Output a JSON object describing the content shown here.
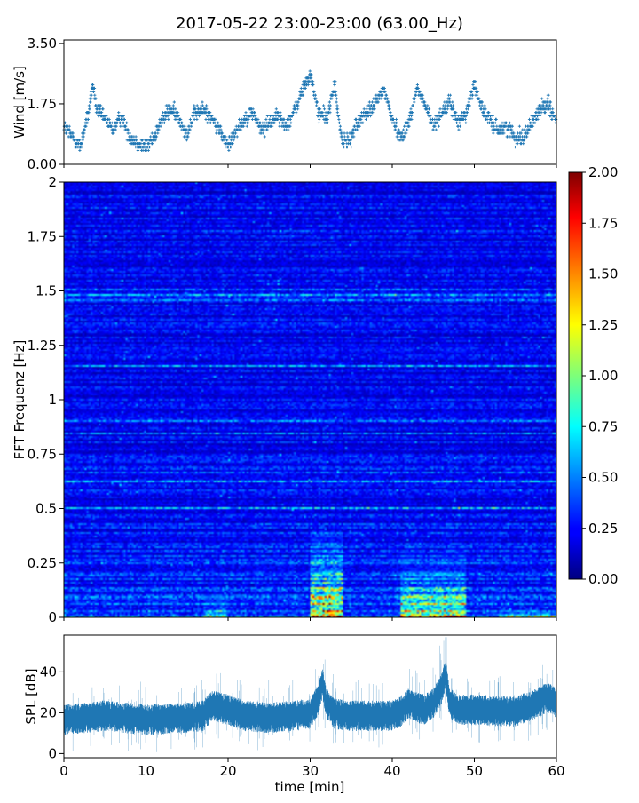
{
  "title": "2017-05-22 23:00-23:00 (63.00_Hz)",
  "chart_data": [
    {
      "type": "scatter",
      "panel": "wind",
      "ylabel": "Wind [m/s]",
      "xlim": [
        0,
        60
      ],
      "ylim": [
        0,
        3.6
      ],
      "yticks": [
        "0.00",
        "1.75",
        "3.50"
      ],
      "yticks_values": [
        0,
        1.75,
        3.5
      ],
      "marker_color": "#1f77b4",
      "series_envelope": [
        [
          0,
          1.1
        ],
        [
          1,
          0.8
        ],
        [
          2,
          0.5
        ],
        [
          3,
          1.5
        ],
        [
          3.5,
          2.3
        ],
        [
          4,
          1.6
        ],
        [
          5,
          1.3
        ],
        [
          6,
          1.0
        ],
        [
          7,
          1.4
        ],
        [
          8,
          0.8
        ],
        [
          9,
          0.6
        ],
        [
          10,
          0.5
        ],
        [
          11,
          0.8
        ],
        [
          12,
          1.3
        ],
        [
          13,
          1.6
        ],
        [
          14,
          1.3
        ],
        [
          15,
          0.9
        ],
        [
          16,
          1.5
        ],
        [
          17,
          1.6
        ],
        [
          18,
          1.3
        ],
        [
          19,
          1.0
        ],
        [
          20,
          0.5
        ],
        [
          21,
          1.0
        ],
        [
          22,
          1.3
        ],
        [
          23,
          1.5
        ],
        [
          24,
          1.0
        ],
        [
          25,
          1.2
        ],
        [
          26,
          1.4
        ],
        [
          27,
          1.1
        ],
        [
          28,
          1.5
        ],
        [
          29,
          2.1
        ],
        [
          30,
          2.6
        ],
        [
          31,
          1.5
        ],
        [
          32,
          1.3
        ],
        [
          33,
          2.3
        ],
        [
          33.5,
          1.2
        ],
        [
          34,
          0.6
        ],
        [
          35,
          0.8
        ],
        [
          36,
          1.3
        ],
        [
          37,
          1.5
        ],
        [
          38,
          1.8
        ],
        [
          39,
          2.2
        ],
        [
          40,
          1.3
        ],
        [
          41,
          0.8
        ],
        [
          42,
          1.2
        ],
        [
          43,
          2.2
        ],
        [
          44,
          1.7
        ],
        [
          45,
          1.1
        ],
        [
          46,
          1.5
        ],
        [
          47,
          1.8
        ],
        [
          48,
          1.2
        ],
        [
          49,
          1.5
        ],
        [
          50,
          2.3
        ],
        [
          51,
          1.6
        ],
        [
          52,
          1.2
        ],
        [
          53,
          1.0
        ],
        [
          54,
          1.1
        ],
        [
          55,
          0.8
        ],
        [
          56,
          0.8
        ],
        [
          57,
          1.2
        ],
        [
          58,
          1.6
        ],
        [
          59,
          1.8
        ],
        [
          60,
          1.2
        ]
      ]
    },
    {
      "type": "heatmap",
      "panel": "spectrogram",
      "ylabel": "FFT Frequenz [Hz]",
      "xlim": [
        0,
        60
      ],
      "ylim": [
        0,
        2
      ],
      "yticks": [
        "0",
        "0.25",
        "0.5",
        "0.75",
        "1",
        "1.25",
        "1.5",
        "1.75",
        "2"
      ],
      "yticks_values": [
        0,
        0.25,
        0.5,
        0.75,
        1,
        1.25,
        1.5,
        1.75,
        2
      ],
      "colormap": "jet",
      "clim": [
        0,
        2
      ],
      "colorbar_ticks": [
        "0.00",
        "0.25",
        "0.50",
        "0.75",
        "1.00",
        "1.25",
        "1.50",
        "1.75",
        "2.00"
      ],
      "colorbar_values": [
        0,
        0.25,
        0.5,
        0.75,
        1,
        1.25,
        1.5,
        1.75,
        2
      ],
      "hot_spots": [
        {
          "x": [
            30,
            34
          ],
          "y": [
            0,
            0.4
          ],
          "level": 1.8
        },
        {
          "x": [
            41,
            49
          ],
          "y": [
            0,
            0.3
          ],
          "level": 1.6
        },
        {
          "x": [
            17,
            20
          ],
          "y": [
            0,
            0.15
          ],
          "level": 1.0
        },
        {
          "x": [
            53,
            60
          ],
          "y": [
            0,
            0.05
          ],
          "level": 1.2
        }
      ]
    },
    {
      "type": "line",
      "panel": "spl",
      "ylabel": "SPL [dB]",
      "xlabel": "time [min]",
      "xlim": [
        0,
        60
      ],
      "ylim": [
        -2,
        58
      ],
      "xticks": [
        "0",
        "10",
        "20",
        "30",
        "40",
        "50",
        "60"
      ],
      "xticks_values": [
        0,
        10,
        20,
        30,
        40,
        50,
        60
      ],
      "yticks": [
        "0",
        "20",
        "40"
      ],
      "yticks_values": [
        0,
        20,
        40
      ],
      "line_color": "#1f77b4",
      "series_envelope": [
        [
          0,
          17
        ],
        [
          5,
          19
        ],
        [
          10,
          17
        ],
        [
          15,
          18
        ],
        [
          17,
          19
        ],
        [
          18,
          24
        ],
        [
          20,
          22
        ],
        [
          22,
          19
        ],
        [
          25,
          18
        ],
        [
          28,
          19
        ],
        [
          30,
          20
        ],
        [
          31,
          27
        ],
        [
          31.5,
          35
        ],
        [
          32,
          25
        ],
        [
          33,
          20
        ],
        [
          35,
          19
        ],
        [
          38,
          19
        ],
        [
          40,
          19
        ],
        [
          41,
          21
        ],
        [
          42,
          25
        ],
        [
          43,
          23
        ],
        [
          44,
          22
        ],
        [
          45,
          25
        ],
        [
          46,
          32
        ],
        [
          46.5,
          40
        ],
        [
          47,
          25
        ],
        [
          48,
          22
        ],
        [
          50,
          22
        ],
        [
          55,
          21
        ],
        [
          57,
          24
        ],
        [
          59,
          28
        ],
        [
          60,
          25
        ]
      ]
    }
  ]
}
